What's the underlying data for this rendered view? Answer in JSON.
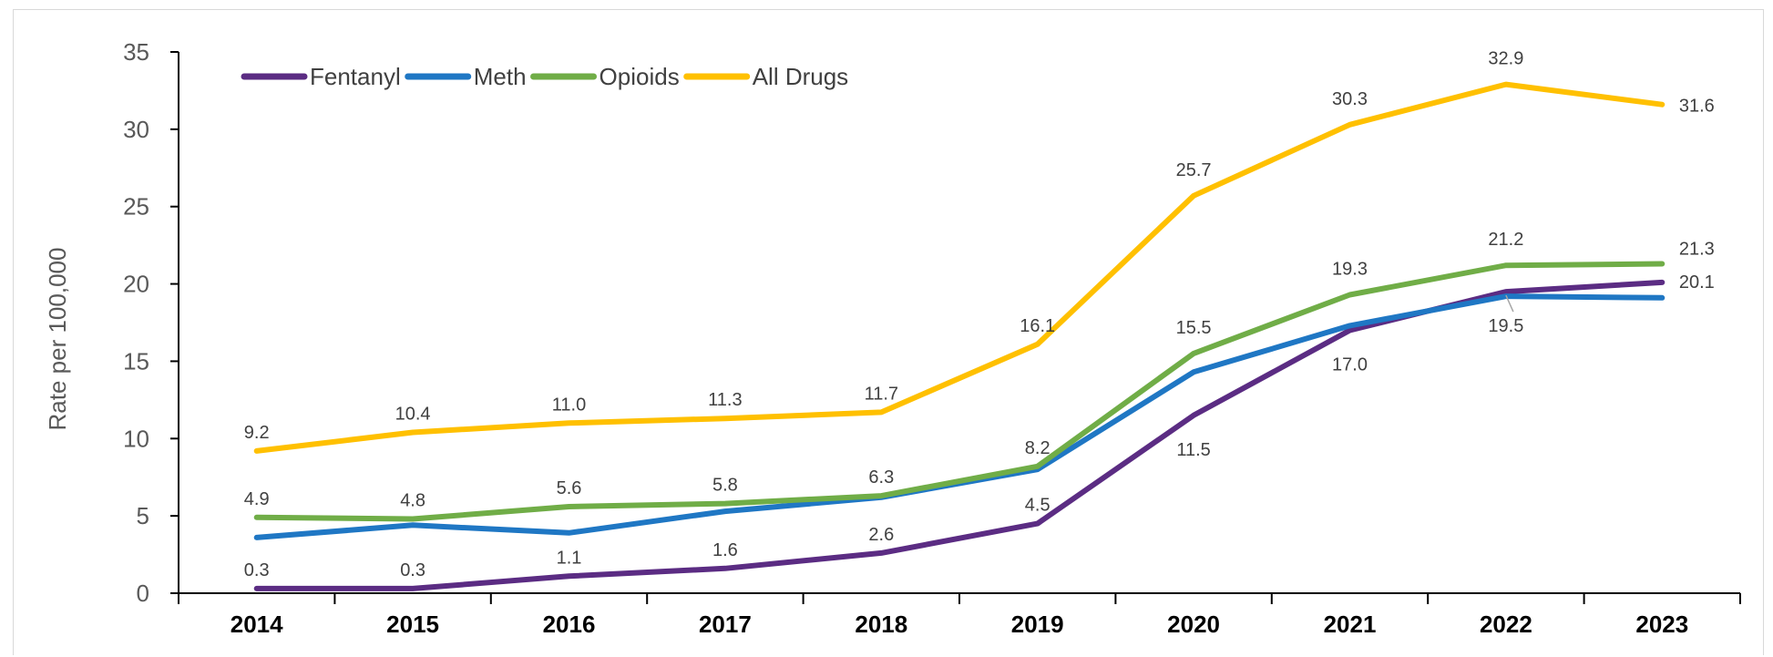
{
  "chart_data": {
    "type": "line",
    "title": "",
    "xlabel": "",
    "ylabel": "Rate per 100,000",
    "x": [
      "2014",
      "2015",
      "2016",
      "2017",
      "2018",
      "2019",
      "2020",
      "2021",
      "2022",
      "2023"
    ],
    "ylim": [
      0,
      35
    ],
    "yticks": [
      "0",
      "5",
      "10",
      "15",
      "20",
      "25",
      "30",
      "35"
    ],
    "grid": false,
    "legend_position": "top-left",
    "series": [
      {
        "name": "Fentanyl",
        "color": "#5b2c83",
        "values": [
          0.3,
          0.3,
          1.1,
          1.6,
          2.6,
          4.5,
          11.5,
          17.0,
          19.5,
          20.1
        ],
        "labels": [
          "0.3",
          "0.3",
          "1.1",
          "1.6",
          "2.6",
          "4.5",
          "11.5",
          "17.0",
          "19.5",
          "20.1"
        ]
      },
      {
        "name": "Meth",
        "color": "#1f77c4",
        "values": [
          3.6,
          4.4,
          3.9,
          5.3,
          6.2,
          8.0,
          14.3,
          17.3,
          19.2,
          19.1
        ],
        "labels": []
      },
      {
        "name": "Opioids",
        "color": "#70ad47",
        "values": [
          4.9,
          4.8,
          5.6,
          5.8,
          6.3,
          8.2,
          15.5,
          19.3,
          21.2,
          21.3
        ],
        "labels": [
          "4.9",
          "4.8",
          "5.6",
          "5.8",
          "6.3",
          "8.2",
          "15.5",
          "19.3",
          "21.2",
          "21.3"
        ]
      },
      {
        "name": "All Drugs",
        "color": "#ffc000",
        "values": [
          9.2,
          10.4,
          11.0,
          11.3,
          11.7,
          16.1,
          25.7,
          30.3,
          32.9,
          31.6
        ],
        "labels": [
          "9.2",
          "10.4",
          "11.0",
          "11.3",
          "11.7",
          "16.1",
          "25.7",
          "30.3",
          "32.9",
          "31.6"
        ]
      }
    ]
  }
}
